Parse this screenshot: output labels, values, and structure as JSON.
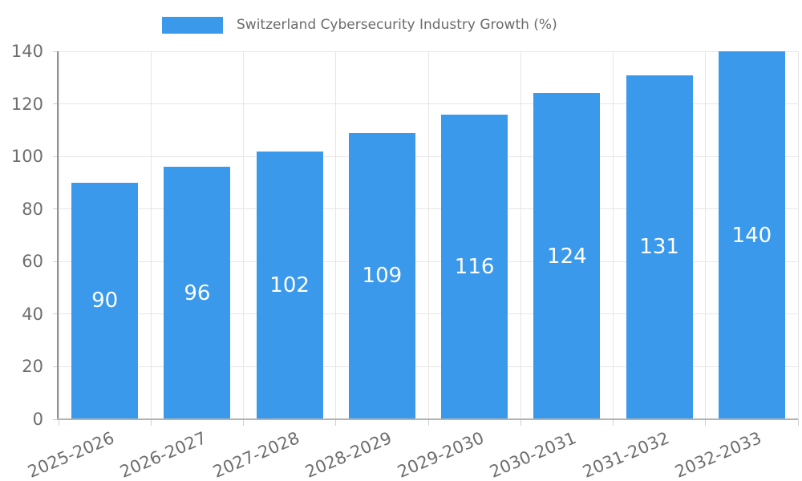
{
  "legend": {
    "label": "Switzerland Cybersecurity Industry Growth (%)"
  },
  "chart_data": {
    "type": "bar",
    "title": "Switzerland Cybersecurity Industry Growth (%)",
    "categories": [
      "2025-2026",
      "2026-2027",
      "2027-2028",
      "2028-2029",
      "2029-2030",
      "2030-2031",
      "2031-2032",
      "2032-2033"
    ],
    "values": [
      90,
      96,
      102,
      109,
      116,
      124,
      131,
      140
    ],
    "xlabel": "",
    "ylabel": "",
    "ylim": [
      0,
      140
    ],
    "y_ticks": [
      0,
      20,
      40,
      60,
      80,
      100,
      120,
      140
    ],
    "grid": true,
    "legend_position": "top",
    "value_labels": "inside-center"
  },
  "colors": {
    "bar": "#3b99ec",
    "bar_label": "#ffffff",
    "legend_text": "#6b6b6b",
    "axis_text": "#6e6e6e",
    "gridline": "#e6e6e6",
    "axis_line_left": "#8e8e8e",
    "axis_line_bottom": "#b3b3b3",
    "tick": "#cfcfcf"
  }
}
